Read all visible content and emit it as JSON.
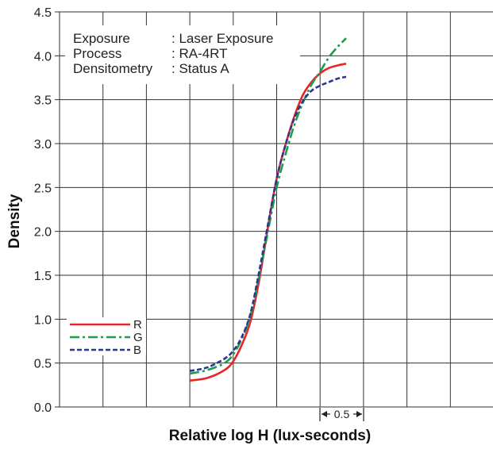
{
  "chart_data": {
    "type": "line",
    "xlabel": "Relative log H (lux-seconds)",
    "ylabel": "Density",
    "ylim": [
      0,
      4.5
    ],
    "y_ticks": [
      "0.0",
      "0.5",
      "1.0",
      "1.5",
      "2.0",
      "2.5",
      "3.0",
      "3.5",
      "4.0",
      "4.5"
    ],
    "x_grid_step": 0.5,
    "x_range": [
      0,
      5
    ],
    "grid": true,
    "legend_position": "bottom-left",
    "scale_marker": "0.5",
    "info": [
      {
        "key": "Exposure",
        "value": ": Laser Exposure"
      },
      {
        "key": "Process",
        "value": ": RA-4RT"
      },
      {
        "key": "Densitometry",
        "value": ": Status A"
      }
    ],
    "series": [
      {
        "name": "R",
        "color": "#e8262a",
        "dash": "solid",
        "x": [
          1.5,
          1.7,
          1.9,
          2.0,
          2.1,
          2.2,
          2.3,
          2.4,
          2.5,
          2.6,
          2.7,
          2.8,
          2.9,
          3.0,
          3.1,
          3.2,
          3.3
        ],
        "y": [
          0.3,
          0.33,
          0.42,
          0.52,
          0.71,
          0.98,
          1.45,
          2.05,
          2.6,
          2.98,
          3.3,
          3.55,
          3.7,
          3.8,
          3.86,
          3.89,
          3.91
        ]
      },
      {
        "name": "G",
        "color": "#1a9e4a",
        "dash": "dashdot",
        "x": [
          1.5,
          1.7,
          1.9,
          2.0,
          2.1,
          2.2,
          2.3,
          2.4,
          2.5,
          2.6,
          2.7,
          2.8,
          2.9,
          3.0,
          3.1,
          3.2,
          3.3
        ],
        "y": [
          0.38,
          0.42,
          0.5,
          0.6,
          0.78,
          1.05,
          1.5,
          2.0,
          2.5,
          2.87,
          3.2,
          3.46,
          3.67,
          3.82,
          3.98,
          4.1,
          4.2
        ]
      },
      {
        "name": "B",
        "color": "#2a3594",
        "dash": "dashed",
        "x": [
          1.5,
          1.7,
          1.9,
          2.0,
          2.1,
          2.2,
          2.3,
          2.4,
          2.5,
          2.6,
          2.7,
          2.8,
          2.9,
          3.0,
          3.1,
          3.2,
          3.3
        ],
        "y": [
          0.41,
          0.45,
          0.55,
          0.64,
          0.8,
          1.07,
          1.55,
          2.08,
          2.6,
          2.98,
          3.28,
          3.48,
          3.6,
          3.66,
          3.7,
          3.74,
          3.76
        ]
      }
    ]
  }
}
